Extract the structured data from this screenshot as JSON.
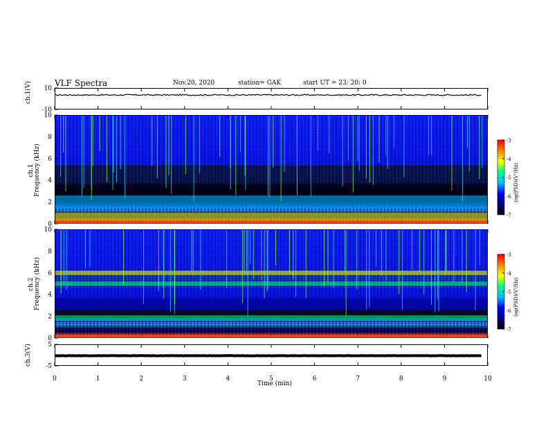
{
  "header": {
    "title": "VLF Spectra",
    "date": "Nov.20, 2020",
    "station": "station= GAK",
    "start": "start  UT  =   23: 20: 0"
  },
  "colors": {
    "colormap": [
      "#000000",
      "#00008b",
      "#0000ff",
      "#00bfff",
      "#00ff80",
      "#ffff00",
      "#ff8000",
      "#ff0000"
    ],
    "trace": "#000000"
  },
  "chart_data": [
    {
      "type": "line",
      "name": "ch1-waveform",
      "ylabel": "ch.1(V)",
      "ylim": [
        -10,
        10
      ],
      "yticks": [
        "10",
        "-10"
      ],
      "xlim": [
        0,
        10
      ],
      "mean_value": 3.5,
      "amplitude": 1.2
    },
    {
      "type": "heatmap",
      "name": "ch1-spectrogram",
      "ylabel_line1": "ch.1",
      "ylabel_line2": "Frequency (kHz)",
      "ylim": [
        0,
        10
      ],
      "yticks": [
        "0",
        "2",
        "4",
        "6",
        "8",
        "10"
      ],
      "xlim": [
        0,
        10
      ],
      "colorbar": {
        "label": "log(PSD)(V²/Hz)",
        "range": [
          -7,
          -3
        ],
        "ticks": [
          "-3",
          "-4",
          "-5",
          "-6",
          "-7"
        ]
      },
      "bands_khz": [
        {
          "from": 0.0,
          "to": 0.3,
          "level": -3.5
        },
        {
          "from": 0.3,
          "to": 1.0,
          "level": -4.2
        },
        {
          "from": 1.4,
          "to": 2.6,
          "level": -5.2
        },
        {
          "from": 2.6,
          "to": 5.4,
          "level": -6.8
        },
        {
          "from": 5.4,
          "to": 10.0,
          "level": -5.9
        }
      ]
    },
    {
      "type": "heatmap",
      "name": "ch2-spectrogram",
      "ylabel_line1": "ch.2",
      "ylabel_line2": "Frequency (kHz)",
      "ylim": [
        0,
        10
      ],
      "yticks": [
        "0",
        "2",
        "4",
        "6",
        "8",
        "10"
      ],
      "xlim": [
        0,
        10
      ],
      "colorbar": {
        "label": "log(PSD)(V²/Hz)",
        "range": [
          -7,
          -3
        ],
        "ticks": [
          "-3",
          "-4",
          "-5",
          "-6",
          "-7"
        ]
      },
      "bands_khz": [
        {
          "from": 0.0,
          "to": 0.3,
          "level": -3.5
        },
        {
          "from": 1.6,
          "to": 2.1,
          "level": -4.8
        },
        {
          "from": 2.6,
          "to": 4.6,
          "level": -5.6
        },
        {
          "from": 4.8,
          "to": 5.2,
          "level": -4.8
        },
        {
          "from": 5.8,
          "to": 6.2,
          "level": -4.4
        },
        {
          "from": 6.2,
          "to": 10.0,
          "level": -5.8
        }
      ]
    },
    {
      "type": "line",
      "name": "ch3-waveform",
      "ylabel": "ch.3(V)",
      "ylim": [
        -5,
        5
      ],
      "yticks": [
        "5",
        "-5"
      ],
      "xlim": [
        0,
        10
      ],
      "mean_value": -0.3,
      "amplitude": 0.1
    }
  ],
  "xaxis": {
    "label": "Time  (min)",
    "ticks": [
      "0",
      "1",
      "2",
      "3",
      "4",
      "5",
      "6",
      "7",
      "8",
      "9",
      "10"
    ]
  }
}
